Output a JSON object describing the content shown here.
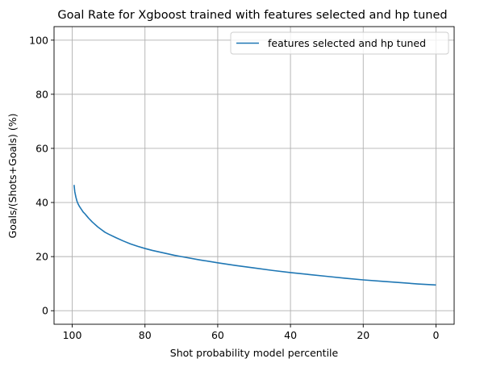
{
  "chart_data": {
    "type": "line",
    "title": "Goal Rate for Xgboost trained with features selected and hp tuned",
    "xlabel": "Shot probability model percentile",
    "ylabel": "Goals/(Shots+Goals) (%)",
    "xlim": [
      105,
      -5
    ],
    "ylim": [
      -5,
      105
    ],
    "x_ticks": [
      100,
      80,
      60,
      40,
      20,
      0
    ],
    "y_ticks": [
      0,
      20,
      40,
      60,
      80,
      100
    ],
    "grid": true,
    "legend": "top-right",
    "series": [
      {
        "name": "features selected and hp tuned",
        "color": "#1f77b4",
        "x": [
          99.5,
          99.3,
          99.0,
          98.7,
          98.4,
          98.0,
          97.5,
          97.0,
          96.5,
          96.0,
          95.5,
          95.0,
          94.5,
          94.0,
          93.0,
          92.0,
          91.0,
          90.0,
          88.0,
          86.0,
          84.0,
          82.0,
          80.0,
          78.0,
          75.0,
          72.0,
          70.0,
          65.0,
          60.0,
          55.0,
          50.0,
          45.0,
          40.0,
          35.0,
          30.0,
          25.0,
          20.0,
          15.0,
          10.0,
          5.0,
          0.0
        ],
        "y": [
          46.5,
          44.0,
          42.0,
          40.5,
          39.5,
          38.5,
          37.5,
          36.5,
          35.8,
          35.0,
          34.2,
          33.5,
          32.8,
          32.2,
          31.0,
          30.0,
          29.0,
          28.3,
          27.0,
          25.8,
          24.7,
          23.8,
          23.0,
          22.3,
          21.4,
          20.5,
          20.0,
          18.8,
          17.7,
          16.7,
          15.8,
          14.9,
          14.1,
          13.4,
          12.7,
          12.0,
          11.4,
          10.9,
          10.4,
          9.9,
          9.5
        ]
      }
    ]
  }
}
